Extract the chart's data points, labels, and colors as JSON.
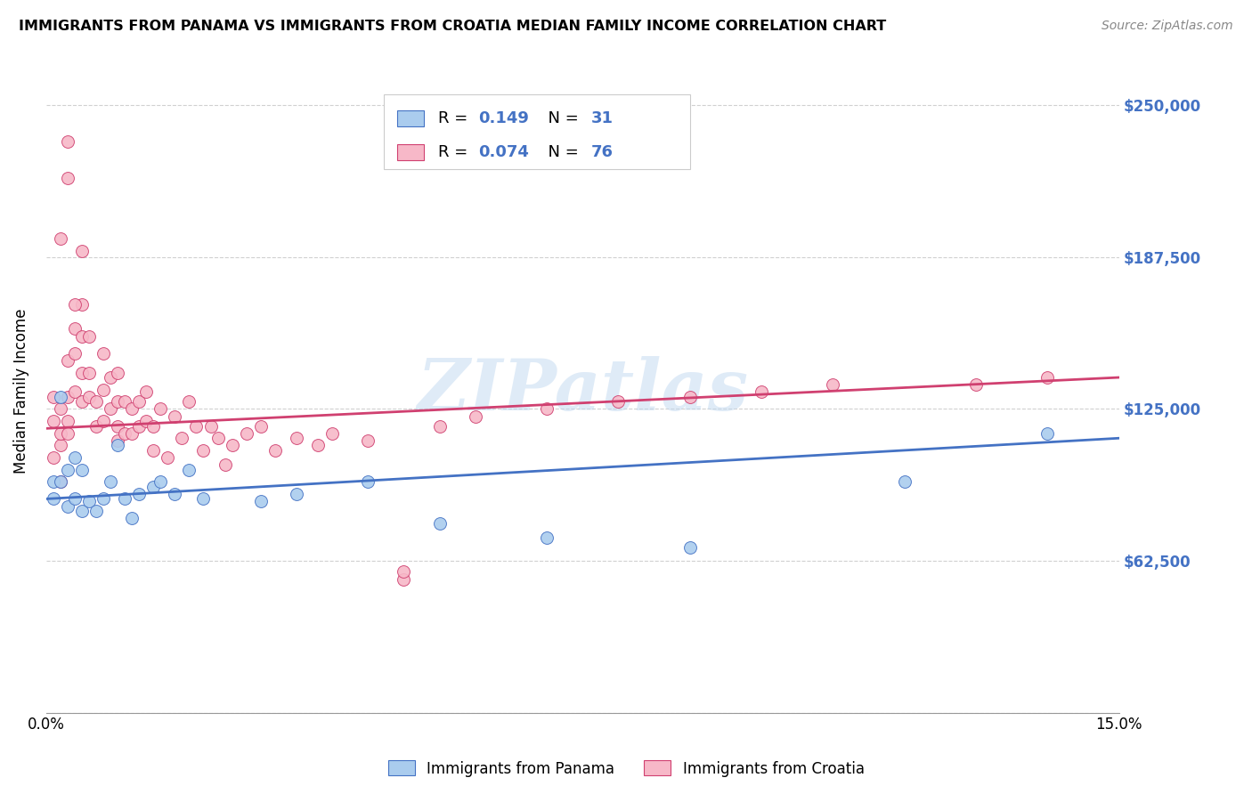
{
  "title": "IMMIGRANTS FROM PANAMA VS IMMIGRANTS FROM CROATIA MEDIAN FAMILY INCOME CORRELATION CHART",
  "source": "Source: ZipAtlas.com",
  "ylabel": "Median Family Income",
  "yticks": [
    0,
    62500,
    125000,
    187500,
    250000
  ],
  "ytick_labels": [
    "",
    "$62,500",
    "$125,000",
    "$187,500",
    "$250,000"
  ],
  "xlim": [
    0.0,
    0.15
  ],
  "ylim": [
    0,
    265000
  ],
  "watermark": "ZIPatlas",
  "panama_R": 0.149,
  "panama_N": 31,
  "croatia_R": 0.074,
  "croatia_N": 76,
  "panama_color": "#aaccee",
  "croatia_color": "#f7b8c8",
  "panama_line_color": "#4472c4",
  "croatia_line_color": "#d04070",
  "panama_trend_x0": 0.0,
  "panama_trend_y0": 88000,
  "panama_trend_x1": 0.15,
  "panama_trend_y1": 113000,
  "croatia_trend_x0": 0.0,
  "croatia_trend_y0": 117000,
  "croatia_trend_x1": 0.15,
  "croatia_trend_y1": 138000,
  "panama_x": [
    0.001,
    0.001,
    0.002,
    0.002,
    0.003,
    0.003,
    0.004,
    0.004,
    0.005,
    0.005,
    0.006,
    0.007,
    0.008,
    0.009,
    0.01,
    0.011,
    0.012,
    0.013,
    0.015,
    0.016,
    0.018,
    0.02,
    0.022,
    0.03,
    0.035,
    0.045,
    0.055,
    0.07,
    0.09,
    0.12,
    0.14
  ],
  "panama_y": [
    88000,
    95000,
    130000,
    95000,
    100000,
    85000,
    105000,
    88000,
    100000,
    83000,
    87000,
    83000,
    88000,
    95000,
    110000,
    88000,
    80000,
    90000,
    93000,
    95000,
    90000,
    100000,
    88000,
    87000,
    90000,
    95000,
    78000,
    72000,
    68000,
    95000,
    115000
  ],
  "croatia_x": [
    0.001,
    0.001,
    0.001,
    0.002,
    0.002,
    0.002,
    0.002,
    0.003,
    0.003,
    0.003,
    0.003,
    0.004,
    0.004,
    0.004,
    0.005,
    0.005,
    0.005,
    0.005,
    0.006,
    0.006,
    0.006,
    0.007,
    0.007,
    0.008,
    0.008,
    0.008,
    0.009,
    0.009,
    0.01,
    0.01,
    0.01,
    0.01,
    0.011,
    0.011,
    0.012,
    0.012,
    0.013,
    0.013,
    0.014,
    0.014,
    0.015,
    0.015,
    0.016,
    0.017,
    0.018,
    0.019,
    0.02,
    0.021,
    0.022,
    0.023,
    0.024,
    0.025,
    0.026,
    0.028,
    0.03,
    0.032,
    0.035,
    0.038,
    0.04,
    0.045,
    0.05,
    0.055,
    0.06,
    0.07,
    0.08,
    0.09,
    0.1,
    0.11,
    0.13,
    0.14,
    0.002,
    0.003,
    0.003,
    0.004,
    0.005,
    0.05
  ],
  "croatia_y": [
    105000,
    120000,
    130000,
    95000,
    110000,
    125000,
    115000,
    145000,
    130000,
    120000,
    115000,
    158000,
    148000,
    132000,
    168000,
    155000,
    140000,
    128000,
    155000,
    140000,
    130000,
    128000,
    118000,
    148000,
    133000,
    120000,
    138000,
    125000,
    140000,
    128000,
    118000,
    112000,
    128000,
    115000,
    125000,
    115000,
    128000,
    118000,
    132000,
    120000,
    118000,
    108000,
    125000,
    105000,
    122000,
    113000,
    128000,
    118000,
    108000,
    118000,
    113000,
    102000,
    110000,
    115000,
    118000,
    108000,
    113000,
    110000,
    115000,
    112000,
    55000,
    118000,
    122000,
    125000,
    128000,
    130000,
    132000,
    135000,
    135000,
    138000,
    195000,
    220000,
    235000,
    168000,
    190000,
    58000
  ]
}
